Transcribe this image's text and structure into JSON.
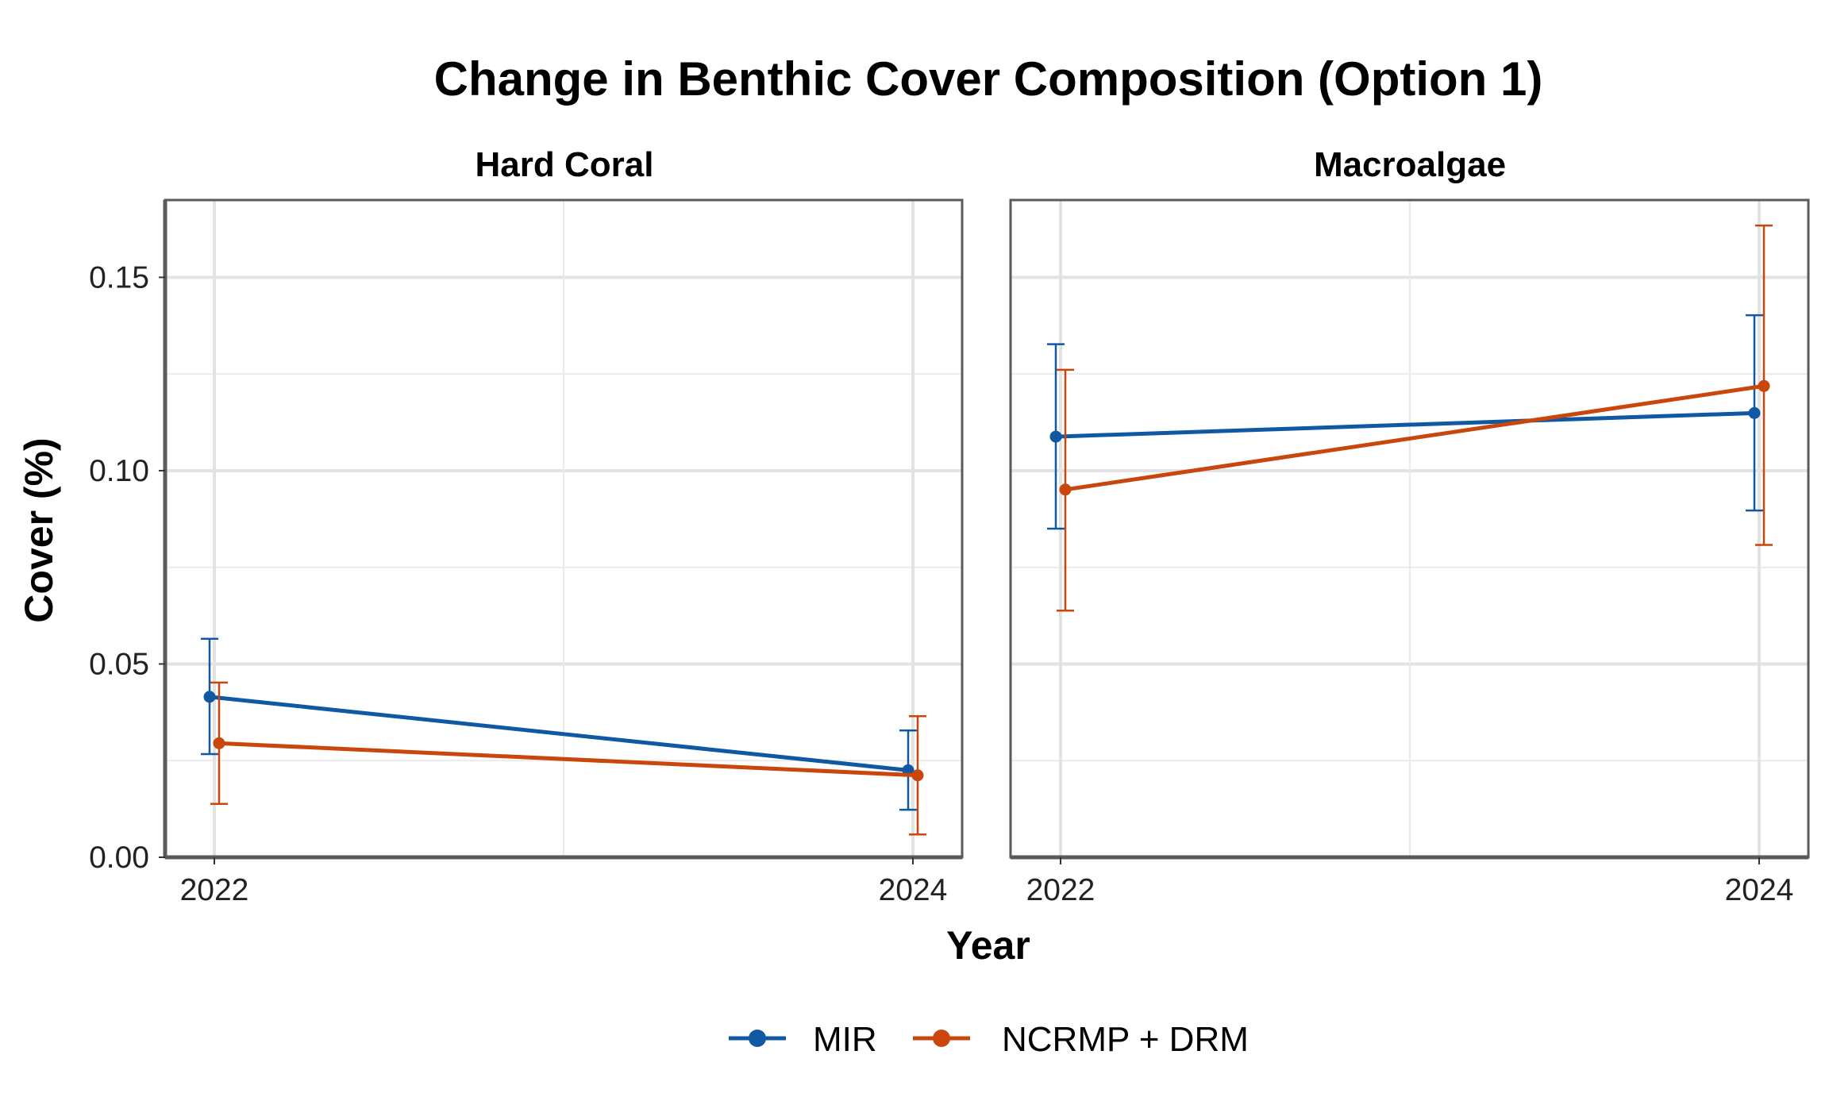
{
  "chart_data": {
    "type": "line",
    "title": "Change in Benthic Cover Composition (Option 1)",
    "xlabel": "Year",
    "ylabel": "Cover (%)",
    "x": [
      2022,
      2024
    ],
    "x_tick_labels": [
      "2022",
      "2024"
    ],
    "ylim": [
      0,
      0.17
    ],
    "y_ticks": [
      0,
      0.05,
      0.1,
      0.15
    ],
    "y_tick_labels": [
      "0.00",
      "0.05",
      "0.10",
      "0.15"
    ],
    "grid": true,
    "legend": {
      "placement": "bottom",
      "entries": [
        "MIR",
        "NCRMP + DRM"
      ]
    },
    "colors": {
      "MIR": "#1158a3",
      "NCRMP + DRM": "#c9460d"
    },
    "facets": [
      {
        "name": "Hard Coral",
        "series": [
          {
            "name": "MIR",
            "values": [
              0.0415,
              0.0225
            ],
            "lower": [
              0.0267,
              0.0123
            ],
            "upper": [
              0.0565,
              0.0328
            ]
          },
          {
            "name": "NCRMP + DRM",
            "values": [
              0.0295,
              0.0212
            ],
            "lower": [
              0.0138,
              0.0059
            ],
            "upper": [
              0.0452,
              0.0365
            ]
          }
        ]
      },
      {
        "name": "Macroalgae",
        "series": [
          {
            "name": "MIR",
            "values": [
              0.1088,
              0.1149
            ],
            "lower": [
              0.085,
              0.0897
            ],
            "upper": [
              0.1327,
              0.1402
            ]
          },
          {
            "name": "NCRMP + DRM",
            "values": [
              0.0951,
              0.1219
            ],
            "lower": [
              0.0638,
              0.0808
            ],
            "upper": [
              0.1261,
              0.1634
            ]
          }
        ]
      }
    ]
  }
}
